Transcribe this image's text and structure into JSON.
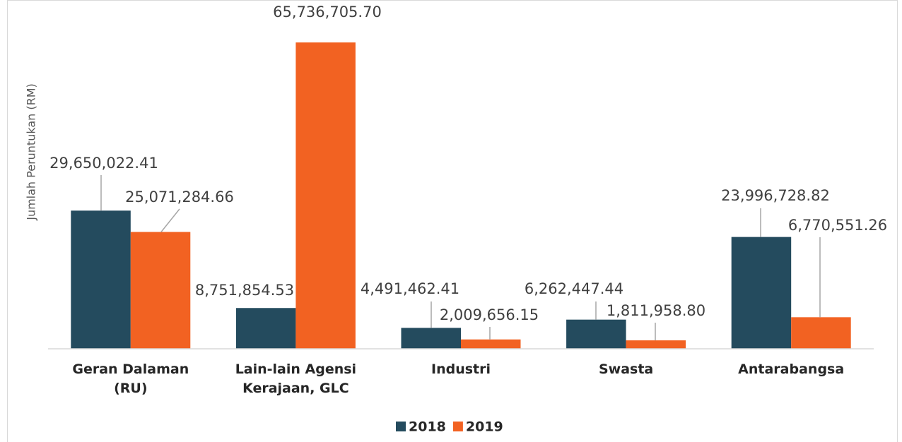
{
  "chart_data": {
    "type": "bar",
    "y_label": "Jumlah Peruntukan (RM)",
    "categories": [
      "Geran Dalaman (RU)",
      "Lain-lain Agensi Kerajaan, GLC",
      "Industri",
      "Swasta",
      "Antarabangsa"
    ],
    "series": [
      {
        "name": "2018",
        "color": "#244b5e",
        "values": [
          29650022.41,
          8751854.53,
          4491462.41,
          6262447.44,
          23996728.82
        ],
        "value_labels": [
          "29,650,022.41",
          "8,751,854.53",
          "4,491,462.41",
          "6,262,447.44",
          "23,996,728.82"
        ]
      },
      {
        "name": "2019",
        "color": "#f26222",
        "values": [
          25071284.66,
          65736705.7,
          2009656.15,
          1811958.8,
          6770551.26
        ],
        "value_labels": [
          "25,071,284.66",
          "65,736,705.70",
          "2,009,656.15",
          "1,811,958.80",
          "6,770,551.26"
        ]
      }
    ],
    "ylim": [
      0,
      70000000
    ],
    "legend": "bottom"
  }
}
